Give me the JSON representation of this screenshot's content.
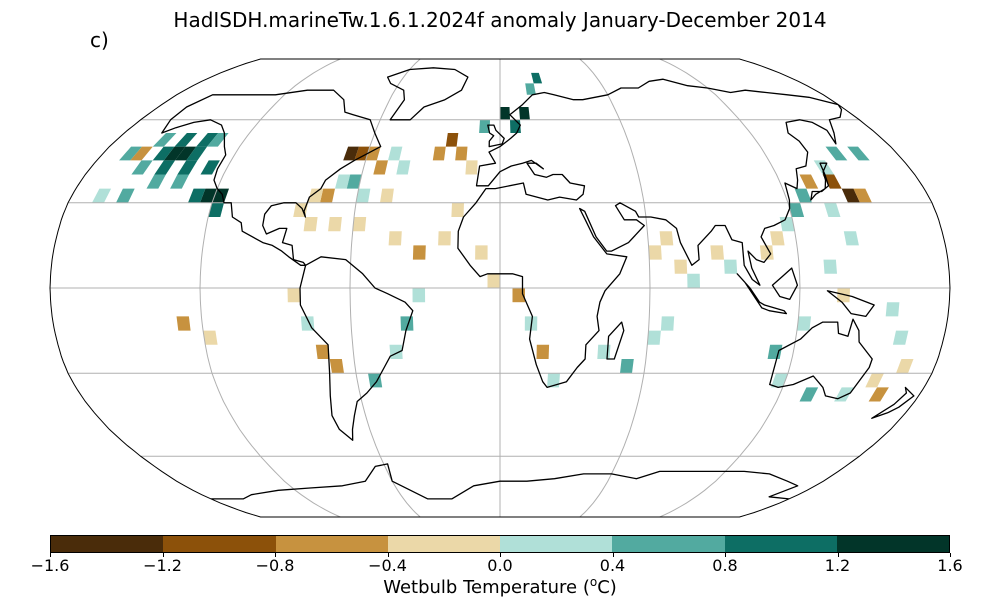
{
  "title": "HadISDH.marineTw.1.6.1.2024f anomaly January-December 2014",
  "panel_label": "c)",
  "colorbar": {
    "label_prefix": "Wetbulb Temperature (",
    "label_sup": "o",
    "label_suffix": "C)",
    "ticks": [
      "−1.6",
      "−1.2",
      "−0.8",
      "−0.4",
      "0.0",
      "0.4",
      "0.8",
      "1.2",
      "1.6"
    ],
    "colors": [
      "#4a2c0a",
      "#8c510a",
      "#c7923f",
      "#ebd8a8",
      "#b0e0d8",
      "#52aaa0",
      "#0d6e64",
      "#023529"
    ]
  },
  "map": {
    "projection": "Robinson",
    "ocean_color": "#ffffff",
    "land_outline_color": "#000000",
    "gridline_color": "#b0b0b0"
  },
  "chart_data": {
    "type": "heatmap",
    "variable": "marine wet bulb temperature anomaly",
    "units": "degC",
    "period": "January-December 2014",
    "vmin": -1.6,
    "vmax": 1.6,
    "bins": [
      -1.6,
      -1.2,
      -0.8,
      -0.4,
      0.0,
      0.4,
      0.8,
      1.2,
      1.6
    ],
    "cells": [
      {
        "lon": -150,
        "lat": 45,
        "value": 1.4
      },
      {
        "lon": -145,
        "lat": 45,
        "value": 1.4
      },
      {
        "lon": -140,
        "lat": 45,
        "value": 1.0
      },
      {
        "lon": -155,
        "lat": 45,
        "value": 1.0
      },
      {
        "lon": -160,
        "lat": 50,
        "value": 0.6
      },
      {
        "lon": -150,
        "lat": 50,
        "value": 1.0
      },
      {
        "lon": -140,
        "lat": 50,
        "value": 1.0
      },
      {
        "lon": -135,
        "lat": 50,
        "value": 0.6
      },
      {
        "lon": -150,
        "lat": 40,
        "value": 1.0
      },
      {
        "lon": -140,
        "lat": 40,
        "value": 1.0
      },
      {
        "lon": -130,
        "lat": 40,
        "value": 1.0
      },
      {
        "lon": -160,
        "lat": 40,
        "value": 0.6
      },
      {
        "lon": -170,
        "lat": 45,
        "value": 0.6
      },
      {
        "lon": -165,
        "lat": 45,
        "value": -0.6
      },
      {
        "lon": -125,
        "lat": 30,
        "value": 1.4
      },
      {
        "lon": -120,
        "lat": 30,
        "value": 1.4
      },
      {
        "lon": -130,
        "lat": 30,
        "value": 1.0
      },
      {
        "lon": -120,
        "lat": 25,
        "value": 1.0
      },
      {
        "lon": -170,
        "lat": 30,
        "value": 0.2
      },
      {
        "lon": -160,
        "lat": 30,
        "value": 0.6
      },
      {
        "lon": -150,
        "lat": 35,
        "value": 0.6
      },
      {
        "lon": -140,
        "lat": 35,
        "value": 0.6
      },
      {
        "lon": -70,
        "lat": 45,
        "value": -1.4
      },
      {
        "lon": -65,
        "lat": 45,
        "value": -1.0
      },
      {
        "lon": -60,
        "lat": 45,
        "value": -0.6
      },
      {
        "lon": -55,
        "lat": 40,
        "value": -0.6
      },
      {
        "lon": -50,
        "lat": 45,
        "value": 0.2
      },
      {
        "lon": -45,
        "lat": 40,
        "value": 0.2
      },
      {
        "lon": -70,
        "lat": 35,
        "value": 0.2
      },
      {
        "lon": -65,
        "lat": 35,
        "value": 0.6
      },
      {
        "lon": -75,
        "lat": 30,
        "value": -0.6
      },
      {
        "lon": -80,
        "lat": 30,
        "value": -0.2
      },
      {
        "lon": -60,
        "lat": 30,
        "value": 0.2
      },
      {
        "lon": -50,
        "lat": 30,
        "value": -0.2
      },
      {
        "lon": -85,
        "lat": 25,
        "value": -0.2
      },
      {
        "lon": -80,
        "lat": 20,
        "value": -0.2
      },
      {
        "lon": -70,
        "lat": 20,
        "value": -0.2
      },
      {
        "lon": -60,
        "lat": 20,
        "value": -0.2
      },
      {
        "lon": -45,
        "lat": 15,
        "value": -0.2
      },
      {
        "lon": -35,
        "lat": 10,
        "value": -0.6
      },
      {
        "lon": -30,
        "lat": 45,
        "value": -0.6
      },
      {
        "lon": -25,
        "lat": 50,
        "value": -1.0
      },
      {
        "lon": -20,
        "lat": 45,
        "value": -0.6
      },
      {
        "lon": -15,
        "lat": 40,
        "value": -0.2
      },
      {
        "lon": -10,
        "lat": 55,
        "value": 0.6
      },
      {
        "lon": 0,
        "lat": 60,
        "value": 1.4
      },
      {
        "lon": 5,
        "lat": 55,
        "value": 1.0
      },
      {
        "lon": 10,
        "lat": 60,
        "value": 1.4
      },
      {
        "lon": 15,
        "lat": 70,
        "value": 0.6
      },
      {
        "lon": 20,
        "lat": 75,
        "value": 1.0
      },
      {
        "lon": -20,
        "lat": 25,
        "value": -0.2
      },
      {
        "lon": -25,
        "lat": 15,
        "value": -0.2
      },
      {
        "lon": -10,
        "lat": 10,
        "value": -0.2
      },
      {
        "lon": -5,
        "lat": 0,
        "value": -0.2
      },
      {
        "lon": 5,
        "lat": -5,
        "value": -0.6
      },
      {
        "lon": 10,
        "lat": -15,
        "value": 0.2
      },
      {
        "lon": 15,
        "lat": -25,
        "value": -0.6
      },
      {
        "lon": 20,
        "lat": -35,
        "value": 0.2
      },
      {
        "lon": -35,
        "lat": -5,
        "value": 0.2
      },
      {
        "lon": -40,
        "lat": -15,
        "value": 0.6
      },
      {
        "lon": -45,
        "lat": -25,
        "value": 0.2
      },
      {
        "lon": -55,
        "lat": -35,
        "value": 0.6
      },
      {
        "lon": -85,
        "lat": -5,
        "value": -0.2
      },
      {
        "lon": -80,
        "lat": -15,
        "value": 0.2
      },
      {
        "lon": -75,
        "lat": -25,
        "value": -0.6
      },
      {
        "lon": -70,
        "lat": -30,
        "value": -0.6
      },
      {
        "lon": -130,
        "lat": -15,
        "value": -0.6
      },
      {
        "lon": -120,
        "lat": -20,
        "value": -0.2
      },
      {
        "lon": 40,
        "lat": -25,
        "value": 0.2
      },
      {
        "lon": 50,
        "lat": -30,
        "value": 0.6
      },
      {
        "lon": 60,
        "lat": -20,
        "value": 0.2
      },
      {
        "lon": 65,
        "lat": -15,
        "value": 0.2
      },
      {
        "lon": 60,
        "lat": 10,
        "value": -0.2
      },
      {
        "lon": 65,
        "lat": 15,
        "value": -0.2
      },
      {
        "lon": 70,
        "lat": 5,
        "value": -0.2
      },
      {
        "lon": 75,
        "lat": 0,
        "value": 0.2
      },
      {
        "lon": 85,
        "lat": 10,
        "value": -0.2
      },
      {
        "lon": 90,
        "lat": 5,
        "value": 0.2
      },
      {
        "lon": 105,
        "lat": 10,
        "value": -0.2
      },
      {
        "lon": 110,
        "lat": 15,
        "value": -0.2
      },
      {
        "lon": 115,
        "lat": 20,
        "value": 0.2
      },
      {
        "lon": 120,
        "lat": 25,
        "value": 0.6
      },
      {
        "lon": 125,
        "lat": 30,
        "value": 0.6
      },
      {
        "lon": 130,
        "lat": 35,
        "value": -0.6
      },
      {
        "lon": 140,
        "lat": 35,
        "value": -1.0
      },
      {
        "lon": 145,
        "lat": 30,
        "value": -1.4
      },
      {
        "lon": 150,
        "lat": 30,
        "value": -0.6
      },
      {
        "lon": 140,
        "lat": 40,
        "value": 0.2
      },
      {
        "lon": 150,
        "lat": 45,
        "value": 0.6
      },
      {
        "lon": 160,
        "lat": 45,
        "value": 0.6
      },
      {
        "lon": 135,
        "lat": 25,
        "value": 0.2
      },
      {
        "lon": 140,
        "lat": 15,
        "value": 0.2
      },
      {
        "lon": 130,
        "lat": 5,
        "value": 0.2
      },
      {
        "lon": 135,
        "lat": -5,
        "value": -0.2
      },
      {
        "lon": 120,
        "lat": -15,
        "value": 0.2
      },
      {
        "lon": 110,
        "lat": -25,
        "value": 0.6
      },
      {
        "lon": 115,
        "lat": -35,
        "value": 0.2
      },
      {
        "lon": 130,
        "lat": -40,
        "value": 0.6
      },
      {
        "lon": 145,
        "lat": -40,
        "value": 0.2
      },
      {
        "lon": 155,
        "lat": -35,
        "value": -0.2
      },
      {
        "lon": 160,
        "lat": -40,
        "value": -0.6
      },
      {
        "lon": 165,
        "lat": -30,
        "value": -0.2
      },
      {
        "lon": 160,
        "lat": -20,
        "value": 0.2
      },
      {
        "lon": 155,
        "lat": -10,
        "value": 0.2
      }
    ]
  }
}
